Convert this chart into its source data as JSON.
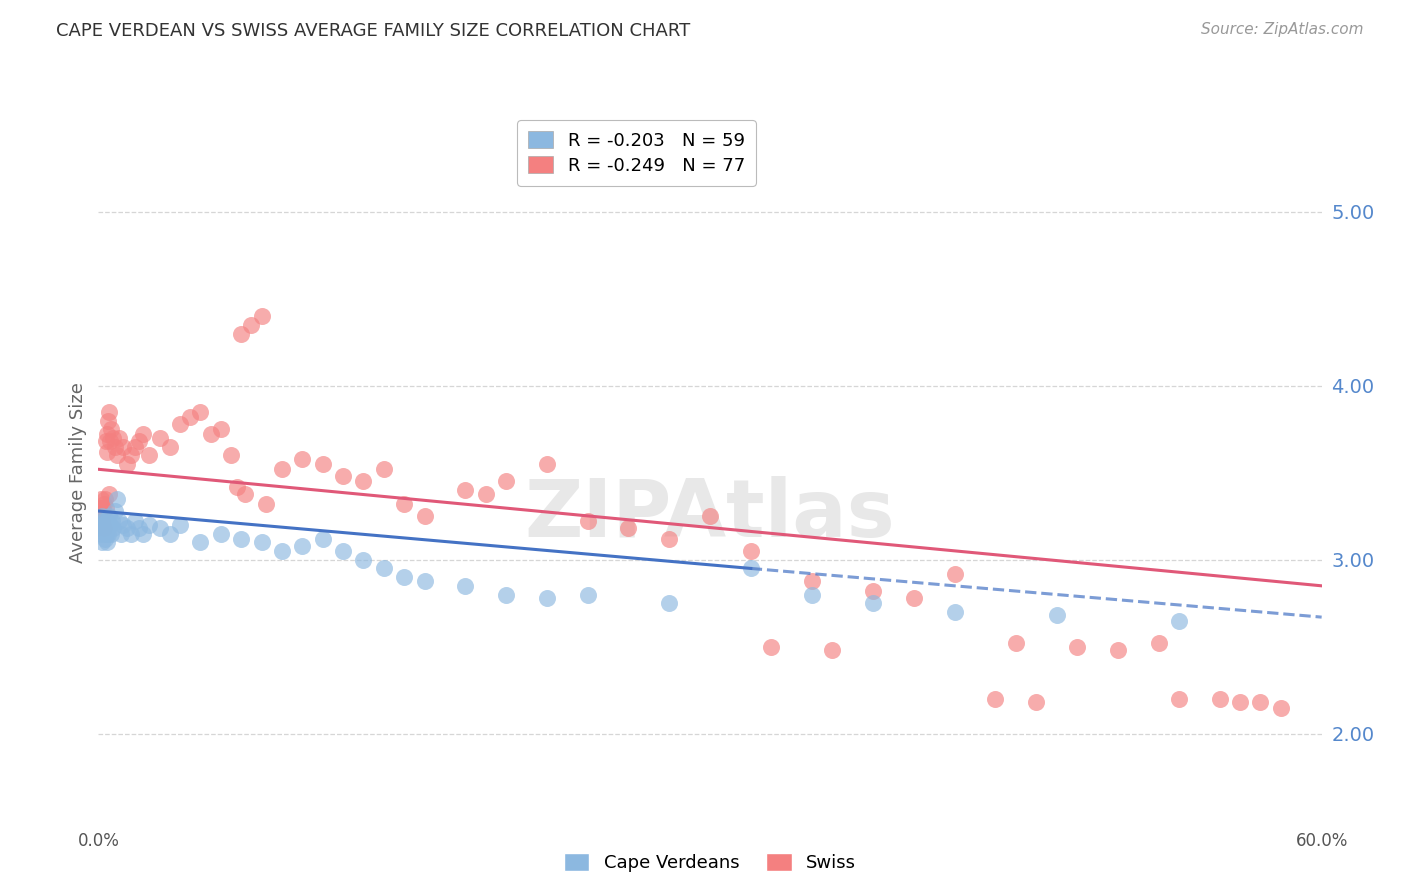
{
  "title": "CAPE VERDEAN VS SWISS AVERAGE FAMILY SIZE CORRELATION CHART",
  "source": "Source: ZipAtlas.com",
  "ylabel": "Average Family Size",
  "watermark": "ZIPAtlas",
  "legend_cv": "R = -0.203   N = 59",
  "legend_sw": "R = -0.249   N = 77",
  "legend_label_cv": "Cape Verdeans",
  "legend_label_sw": "Swiss",
  "cv_color": "#8cb8e0",
  "sw_color": "#f48080",
  "cv_line_color": "#4472c4",
  "sw_line_color": "#e05878",
  "background_color": "#ffffff",
  "grid_color": "#cccccc",
  "right_axis_color": "#5588cc",
  "title_color": "#333333",
  "cv_scatter_x": [
    0.05,
    0.1,
    0.12,
    0.15,
    0.18,
    0.2,
    0.22,
    0.25,
    0.28,
    0.3,
    0.32,
    0.35,
    0.38,
    0.4,
    0.42,
    0.45,
    0.48,
    0.5,
    0.55,
    0.6,
    0.65,
    0.7,
    0.8,
    0.9,
    1.0,
    1.1,
    1.2,
    1.4,
    1.6,
    1.8,
    2.0,
    2.2,
    2.5,
    3.0,
    3.5,
    4.0,
    5.0,
    6.0,
    7.0,
    8.0,
    9.0,
    10.0,
    11.0,
    12.0,
    13.0,
    14.0,
    15.0,
    16.0,
    18.0,
    20.0,
    22.0,
    24.0,
    28.0,
    32.0,
    35.0,
    38.0,
    42.0,
    47.0,
    53.0
  ],
  "cv_scatter_y": [
    3.2,
    3.18,
    3.22,
    3.15,
    3.25,
    3.1,
    3.2,
    3.18,
    3.22,
    3.12,
    3.18,
    3.2,
    3.15,
    3.1,
    3.22,
    3.18,
    3.15,
    3.25,
    3.2,
    3.15,
    3.22,
    3.18,
    3.28,
    3.35,
    3.22,
    3.15,
    3.2,
    3.18,
    3.15,
    3.22,
    3.18,
    3.15,
    3.2,
    3.18,
    3.15,
    3.2,
    3.1,
    3.15,
    3.12,
    3.1,
    3.05,
    3.08,
    3.12,
    3.05,
    3.0,
    2.95,
    2.9,
    2.88,
    2.85,
    2.8,
    2.78,
    2.8,
    2.75,
    2.95,
    2.8,
    2.75,
    2.7,
    2.68,
    2.65
  ],
  "sw_scatter_x": [
    0.08,
    0.12,
    0.15,
    0.18,
    0.2,
    0.22,
    0.25,
    0.28,
    0.3,
    0.35,
    0.4,
    0.45,
    0.5,
    0.55,
    0.6,
    0.7,
    0.8,
    0.9,
    1.0,
    1.2,
    1.4,
    1.6,
    1.8,
    2.0,
    2.2,
    2.5,
    3.0,
    3.5,
    4.0,
    4.5,
    5.0,
    5.5,
    6.0,
    6.5,
    7.0,
    7.5,
    8.0,
    9.0,
    10.0,
    11.0,
    12.0,
    13.0,
    14.0,
    15.0,
    16.0,
    18.0,
    19.0,
    20.0,
    22.0,
    24.0,
    26.0,
    28.0,
    30.0,
    32.0,
    35.0,
    38.0,
    40.0,
    42.0,
    45.0,
    48.0,
    50.0,
    52.0,
    55.0,
    57.0,
    33.0,
    36.0,
    44.0,
    46.0,
    53.0,
    56.0,
    58.0,
    0.38,
    0.42,
    0.52,
    6.8,
    7.2,
    8.2
  ],
  "sw_scatter_y": [
    3.3,
    3.25,
    3.35,
    3.22,
    3.3,
    3.28,
    3.32,
    3.18,
    3.35,
    3.68,
    3.72,
    3.8,
    3.85,
    3.68,
    3.75,
    3.7,
    3.65,
    3.6,
    3.7,
    3.65,
    3.55,
    3.6,
    3.65,
    3.68,
    3.72,
    3.6,
    3.7,
    3.65,
    3.78,
    3.82,
    3.85,
    3.72,
    3.75,
    3.6,
    4.3,
    4.35,
    4.4,
    3.52,
    3.58,
    3.55,
    3.48,
    3.45,
    3.52,
    3.32,
    3.25,
    3.4,
    3.38,
    3.45,
    3.55,
    3.22,
    3.18,
    3.12,
    3.25,
    3.05,
    2.88,
    2.82,
    2.78,
    2.92,
    2.52,
    2.5,
    2.48,
    2.52,
    2.2,
    2.18,
    2.5,
    2.48,
    2.2,
    2.18,
    2.2,
    2.18,
    2.15,
    3.3,
    3.62,
    3.38,
    3.42,
    3.38,
    3.32
  ],
  "cv_trend_solid": {
    "x_start": 0.0,
    "x_end": 32.0,
    "y_start": 3.28,
    "y_end": 2.95
  },
  "cv_trend_dashed": {
    "x_start": 32.0,
    "x_end": 60.0,
    "y_start": 2.95,
    "y_end": 2.67
  },
  "sw_trend": {
    "x_start": 0.0,
    "x_end": 60.0,
    "y_start": 3.52,
    "y_end": 2.85
  },
  "xlim": [
    0.0,
    60.0
  ],
  "ylim": [
    1.5,
    5.5
  ],
  "right_yticks": [
    2.0,
    3.0,
    4.0,
    5.0
  ]
}
